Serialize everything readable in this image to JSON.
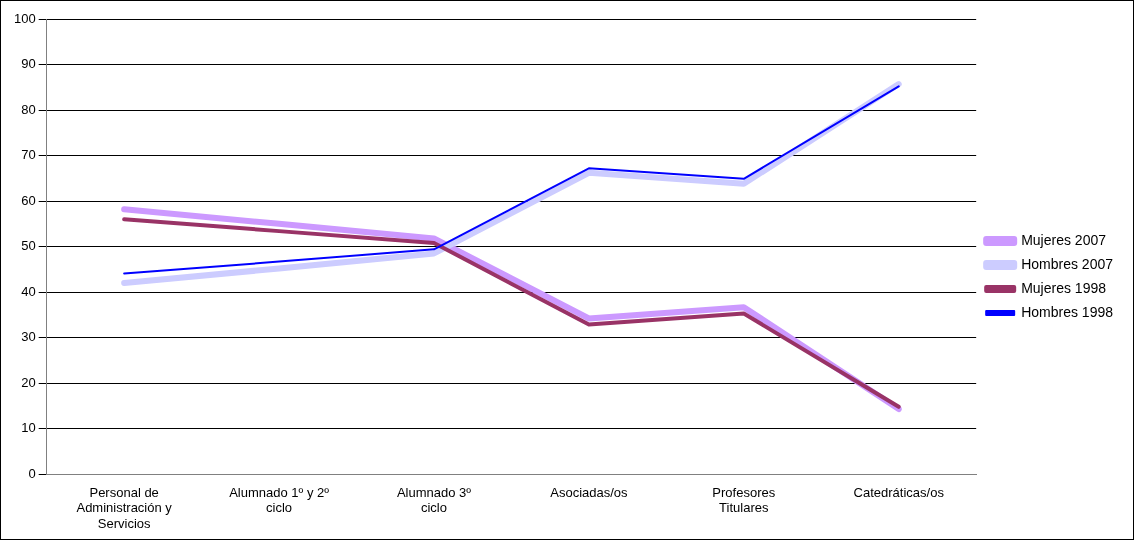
{
  "chart_data": {
    "type": "line",
    "categories": [
      "Personal de Administración y Servicios",
      "Alumnado 1º y 2º ciclo",
      "Alumnado 3º ciclo",
      "Asociadas/os",
      "Profesores Titulares",
      "Catedráticas/os"
    ],
    "series": [
      {
        "name": "Mujeres 2007",
        "color": "#cc99ff",
        "values": [
          58.2,
          55,
          51.8,
          34.2,
          36.7,
          14.3
        ]
      },
      {
        "name": "Hombres 2007",
        "color": "#ccccff",
        "values": [
          42,
          45.2,
          48.5,
          66.2,
          63.8,
          85.7
        ]
      },
      {
        "name": "Mujeres 1998",
        "color": "#993366",
        "values": [
          56,
          53.4,
          50.8,
          32.9,
          35.3,
          14.8
        ]
      },
      {
        "name": "Hombres 1998",
        "color": "#0000ff",
        "values": [
          44.1,
          46.7,
          49.4,
          67.2,
          64.9,
          85.2
        ]
      }
    ],
    "ylim": [
      0,
      100
    ],
    "yticks": [
      0,
      10,
      20,
      30,
      40,
      50,
      60,
      70,
      80,
      90,
      100
    ],
    "grid": "y",
    "legend": "right",
    "marker": "none",
    "line_style": "solid"
  }
}
